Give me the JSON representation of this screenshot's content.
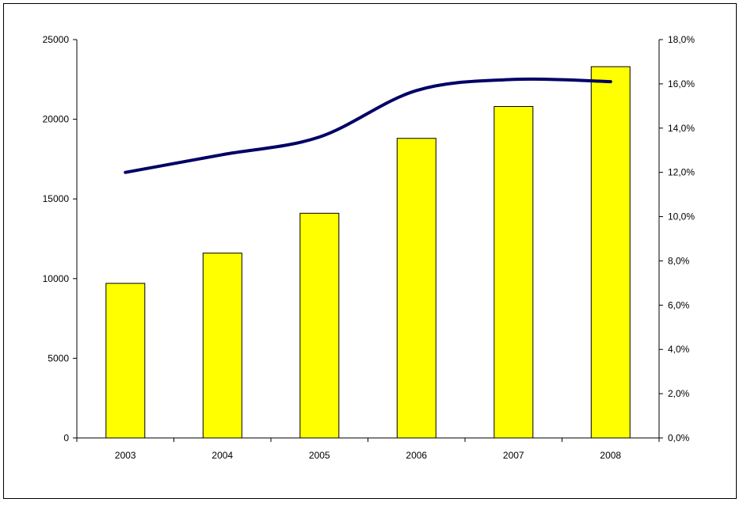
{
  "chart_data": {
    "type": "bar",
    "categories": [
      "2003",
      "2004",
      "2005",
      "2006",
      "2007",
      "2008"
    ],
    "series": [
      {
        "type": "bar",
        "axis": "left",
        "color": "#ffff00",
        "values": [
          9700,
          11600,
          14100,
          18800,
          20800,
          23300
        ]
      },
      {
        "type": "line",
        "axis": "right",
        "color": "#000066",
        "values": [
          12.0,
          12.8,
          13.6,
          15.7,
          16.2,
          16.1
        ]
      }
    ],
    "y_left": {
      "min": 0,
      "max": 25000,
      "ticks": [
        "0",
        "5000",
        "10000",
        "15000",
        "20000",
        "25000"
      ]
    },
    "y_right": {
      "min": 0,
      "max": 18,
      "ticks": [
        "0,0%",
        "2,0%",
        "4,0%",
        "6,0%",
        "8,0%",
        "10,0%",
        "12,0%",
        "14,0%",
        "16,0%",
        "18,0%"
      ]
    },
    "grid": false,
    "legend": "none",
    "title": "",
    "xlabel": "",
    "ylabel": ""
  }
}
